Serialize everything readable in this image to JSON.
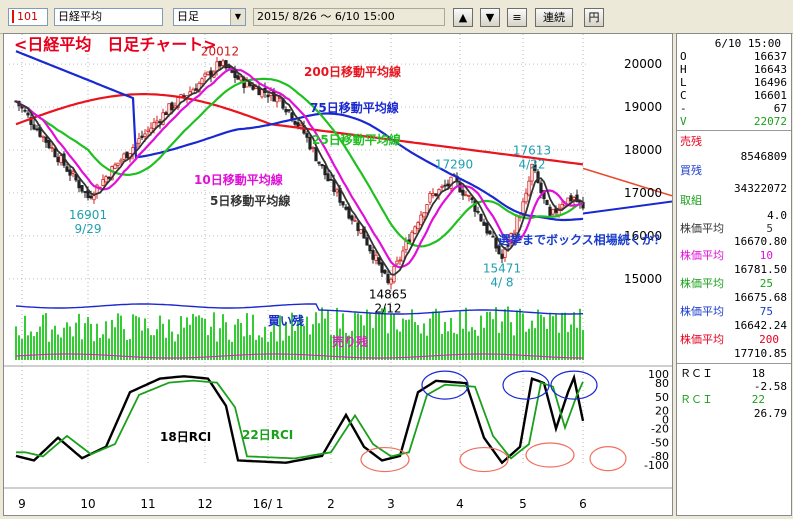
{
  "toolbar": {
    "code": "101",
    "name": "日経平均",
    "period": "日足",
    "range": "2015/ 8/26 ～  6/10 15:00",
    "up_label": "▲",
    "down_label": "▼",
    "menu_label": "≡",
    "continuous_label": "連続",
    "yen_label": "円"
  },
  "chart_data": {
    "type": "line",
    "title": "<日経平均　日足チャート>",
    "x_ticks": [
      "9",
      "10",
      "11",
      "12",
      "16/ 1",
      "2",
      "3",
      "4",
      "5",
      "6"
    ],
    "price_axis": {
      "ticks": [
        "20000",
        "19000",
        "18000",
        "17000",
        "16000",
        "15000"
      ],
      "ylim": [
        14600,
        20700
      ]
    },
    "series": [
      {
        "name": "5日移動平均線",
        "color": "#333333"
      },
      {
        "name": "10日移動平均線",
        "color": "#e010d8"
      },
      {
        "name": "25日移動平均線",
        "color": "#20c020"
      },
      {
        "name": "75日移動平均線",
        "color": "#1a28d0"
      },
      {
        "name": "200日移動平均線",
        "color": "#e8141e"
      }
    ],
    "annotations": [
      {
        "label": "20012",
        "date": "2015-12-01",
        "price": 20012
      },
      {
        "label": "16901\n9/29",
        "date": "2015-09-29",
        "price": 16901
      },
      {
        "label": "14865\n2/12",
        "date": "2016-02-12",
        "price": 14865
      },
      {
        "label": "17290",
        "date": "2016-03-14",
        "price": 17290
      },
      {
        "label": "15471\n4/ 8",
        "date": "2016-04-08",
        "price": 15471
      },
      {
        "label": "17613\n4/22",
        "date": "2016-04-22",
        "price": 17613
      }
    ],
    "comment": "選挙までボックス相場続くか？",
    "volume_labels": {
      "buy": "買い残",
      "sell": "売り残"
    },
    "rci_axis": {
      "ticks": [
        "100",
        "80",
        "50",
        "20",
        "0",
        "-20",
        "-50",
        "-80",
        "-100"
      ]
    },
    "rci_series": [
      {
        "name": "18日RCI",
        "color": "#000000"
      },
      {
        "name": "22日RCI",
        "color": "#1ba01b"
      }
    ]
  },
  "panel": {
    "datetime": "6/10 15:00",
    "ohlc": [
      {
        "label": "O",
        "value": "16637"
      },
      {
        "label": "H",
        "value": "16643"
      },
      {
        "label": "L",
        "value": "16496"
      },
      {
        "label": "C",
        "value": "16601"
      },
      {
        "label": "-",
        "value": "67"
      },
      {
        "label": "V",
        "value": "22072"
      }
    ],
    "sell_label": "売残",
    "sell_value": "8546809",
    "buy_label": "買残",
    "buy_value": "34322072",
    "kumi_label": "取組",
    "kumi_value": "4.0",
    "ma": [
      {
        "label": "株価平均",
        "period": "5",
        "value": "16670.80"
      },
      {
        "label": "株価平均",
        "period": "10",
        "value": "16781.50"
      },
      {
        "label": "株価平均",
        "period": "25",
        "value": "16675.68"
      },
      {
        "label": "株価平均",
        "period": "75",
        "value": "16642.24"
      },
      {
        "label": "株価平均",
        "period": "200",
        "value": "17710.85"
      }
    ],
    "rci": [
      {
        "label": "ＲＣＩ",
        "period": "18",
        "value": "-2.58"
      },
      {
        "label": "ＲＣＩ",
        "period": "22",
        "value": "26.79"
      }
    ]
  }
}
